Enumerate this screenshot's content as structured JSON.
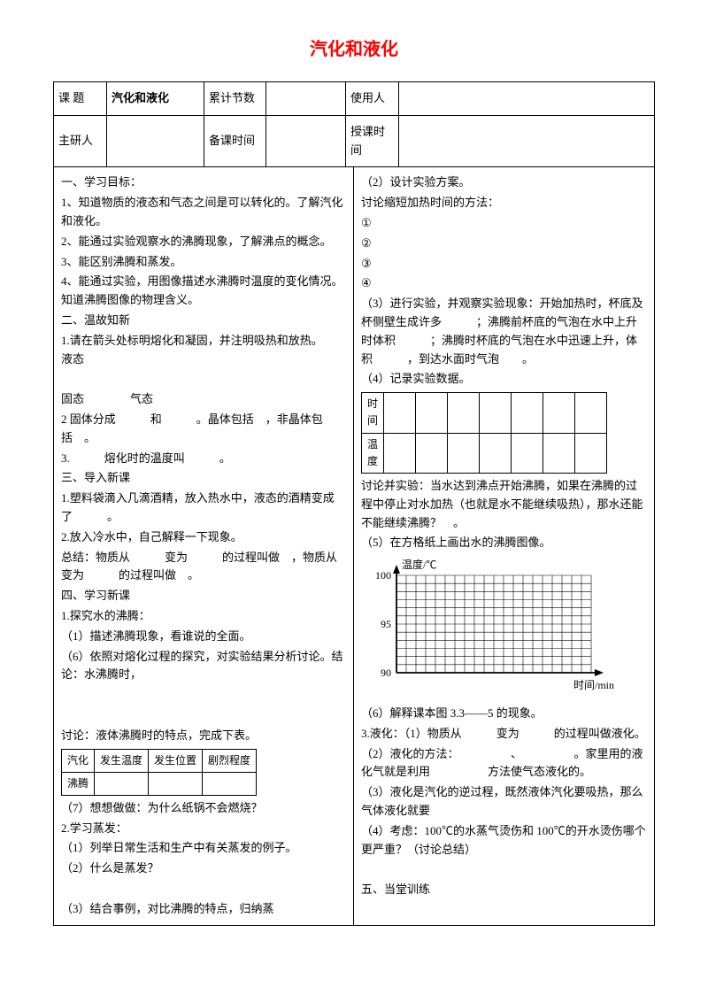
{
  "title": "汽化和液化",
  "header": {
    "topic_label": "课 题",
    "topic_value": "汽化和液化",
    "count_label": "累计节数",
    "count_value": "",
    "user_label": "使用人",
    "user_value": "",
    "researcher_label": "主研人",
    "researcher_value": "",
    "preptime_label": "备课时间",
    "preptime_value": "",
    "teachtime_label": "授课时间",
    "teachtime_value": ""
  },
  "left": {
    "s1_title": "一、学习目标：",
    "s1_1": "1、知道物质的液态和气态之间是可以转化的。了解汽化和液化。",
    "s1_2": "2、能通过实验观察水的沸腾现象，了解沸点的概念。",
    "s1_3": "3、能区别沸腾和蒸发。",
    "s1_4": "4、能通过实验，用图像描述水沸腾时温度的变化情况。知道沸腾图像的物理含义。",
    "s2_title": "二、温故知新",
    "s2_1": "1.请在箭头处标明熔化和凝固，并注明吸热和放热。　　液态",
    "s2_blank": "",
    "s2_2": "固态　　　　气态",
    "s2_3": "2 固体分成　　　和　　　。晶体包括　，非晶体包括　。",
    "s2_4": "3.　　　熔化时的温度叫　　　。",
    "s3_title": "三、导入新课",
    "s3_1": "1.塑料袋滴入几滴酒精，放入热水中，液态的酒精变成了　　　。",
    "s3_2": "2.放入冷水中，自己解释一下现象。",
    "s3_3": "总结：物质从　　　变为　　　的过程叫做　，物质从　　　变为　　　的过程叫做　。",
    "s4_title": "四、学习新课",
    "s4_1": "1.探究水的沸腾：",
    "s4_1_1": "（1）描述沸腾现象，看谁说的全面。",
    "s4_1_6": "（6）依照对熔化过程的探究，对实验结果分析讨论。结论：水沸腾时，",
    "s4_discuss": "讨论：液体沸腾时的特点，完成下表。",
    "table1": {
      "h1": "汽化",
      "h2": "发生温度",
      "h3": "发生位置",
      "h4": "剧烈程度",
      "r1": "沸腾"
    },
    "s4_7": "（7）想想做做：为什么纸锅不会燃烧？",
    "s4_2": "2.学习蒸发：",
    "s4_2_1": "（1）列举日常生活和生产中有关蒸发的例子。",
    "s4_2_2": "（2）什么是蒸发？",
    "s4_2_3": "（3）结合事例，对比沸腾的特点，归纳蒸"
  },
  "right": {
    "r2": "（2）设计实验方案。",
    "r2_discuss": "讨论缩短加热时间的方法：",
    "r2_1": "①",
    "r2_2": "②",
    "r2_3": "③",
    "r2_4": "④",
    "r3": "（3）进行实验，并观察实验现象：开始加热时，杯底及杯侧壁生成许多　　　；沸腾前杯底的气泡在水中上升时体积　　　；沸腾时杯底的气泡在水中迅速上升，体积　　　，到达水面时气泡　　。",
    "r4": "（4）记录实验数据。",
    "data_table": {
      "row1": "时间",
      "row2": "温度"
    },
    "r4_discuss": "讨论并实验：当水达到沸点开始沸腾，如果在沸腾的过程中停止对水加热（也就是水不能继续吸热），那水还能不能继续沸腾？　。",
    "r5": "（5）在方格纸上画出水的沸腾图像。",
    "chart": {
      "ylabel": "温度/℃",
      "xlabel": "时间/min",
      "y_ticks": [
        "100",
        "95",
        "90"
      ],
      "y_min": 90,
      "y_max": 100,
      "grid_cols": 20,
      "grid_rows": 12,
      "grid_color": "#000000",
      "bg": "#ffffff"
    },
    "r6": "（6）解释课本图 3.3——5 的现象。",
    "r_3": "3.液化：（1）物质从　　　变为　　　的过程叫做液化。",
    "r_3_2": "（2）液化的方法：　　　　　、　　　　　。家里用的液化气就是利用　　　　　方法使气态液化的。",
    "r_3_3": "（3）液化是汽化的逆过程，既然液体汽化要吸热，那么气体液化就要",
    "r_3_4": "（4）考虑：100℃的水蒸气烫伤和 100℃的开水烫伤哪个更严重？（讨论总结）",
    "r_5": "五、当堂训练"
  }
}
